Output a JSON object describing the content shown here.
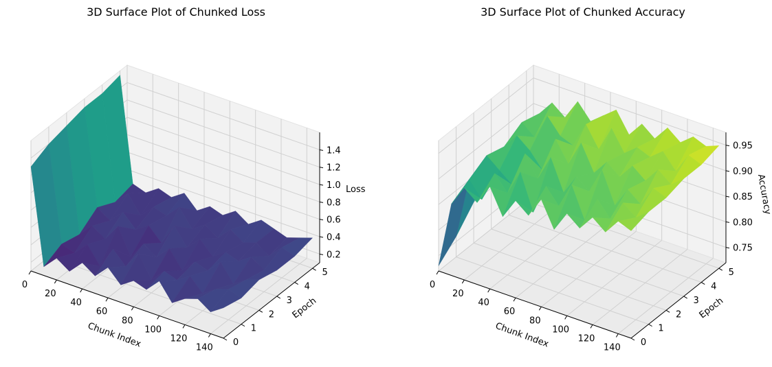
{
  "chart_data": [
    {
      "type": "surface3d",
      "title": "3D Surface Plot of Chunked Loss",
      "xlabel": "Chunk Index",
      "ylabel": "Epoch",
      "zlabel": "Loss",
      "xlim": [
        0,
        150
      ],
      "ylim": [
        0,
        5.4
      ],
      "zlim": [
        0.1,
        1.6
      ],
      "xticks": [
        "0",
        "20",
        "40",
        "60",
        "80",
        "100",
        "120",
        "140"
      ],
      "yticks": [
        "0",
        "1",
        "2",
        "3",
        "4",
        "5"
      ],
      "zticks": [
        "0.2",
        "0.4",
        "0.6",
        "0.8",
        "1.0",
        "1.2",
        "1.4"
      ],
      "colormap": "viridis",
      "epoch_rows": [
        0,
        1,
        2,
        3,
        4,
        5
      ],
      "chunk_points": [
        0,
        10,
        20,
        30,
        40,
        50,
        60,
        70,
        80,
        90,
        100,
        110,
        120,
        130,
        140,
        150
      ],
      "values": [
        [
          1.3,
          0.2,
          0.35,
          0.25,
          0.4,
          0.3,
          0.45,
          0.3,
          0.4,
          0.35,
          0.5,
          0.3,
          0.4,
          0.45,
          0.35,
          0.45
        ],
        [
          1.4,
          0.3,
          0.25,
          0.4,
          0.2,
          0.45,
          0.3,
          0.5,
          0.25,
          0.4,
          0.35,
          0.45,
          0.3,
          0.4,
          0.45,
          0.4
        ],
        [
          1.45,
          0.25,
          0.4,
          0.3,
          0.5,
          0.2,
          0.4,
          0.3,
          0.45,
          0.25,
          0.4,
          0.35,
          0.5,
          0.3,
          0.4,
          0.45
        ],
        [
          1.5,
          0.4,
          0.3,
          0.45,
          0.3,
          0.4,
          0.25,
          0.5,
          0.3,
          0.45,
          0.3,
          0.4,
          0.35,
          0.45,
          0.35,
          0.4
        ],
        [
          1.5,
          0.3,
          0.45,
          0.25,
          0.4,
          0.35,
          0.5,
          0.3,
          0.4,
          0.3,
          0.45,
          0.35,
          0.4,
          0.3,
          0.45,
          0.4
        ],
        [
          1.55,
          0.35,
          0.3,
          0.4,
          0.35,
          0.45,
          0.3,
          0.4,
          0.35,
          0.45,
          0.35,
          0.45,
          0.4,
          0.35,
          0.4,
          0.45
        ]
      ]
    },
    {
      "type": "surface3d",
      "title": "3D Surface Plot of Chunked Accuracy",
      "xlabel": "Chunk Index",
      "ylabel": "Epoch",
      "zlabel": "Accuracy",
      "xlim": [
        0,
        150
      ],
      "ylim": [
        0,
        5.4
      ],
      "zlim": [
        0.72,
        0.975
      ],
      "xticks": [
        "0",
        "20",
        "40",
        "60",
        "80",
        "100",
        "120",
        "140"
      ],
      "yticks": [
        "0",
        "1",
        "2",
        "3",
        "4",
        "5"
      ],
      "zticks": [
        "0.75",
        "0.80",
        "0.85",
        "0.90",
        "0.95"
      ],
      "colormap": "viridis",
      "epoch_rows": [
        0,
        1,
        2,
        3,
        4,
        5
      ],
      "chunk_points": [
        0,
        10,
        20,
        30,
        40,
        50,
        60,
        70,
        80,
        90,
        100,
        110,
        120,
        130,
        140,
        150
      ],
      "values": [
        [
          0.73,
          0.86,
          0.9,
          0.88,
          0.92,
          0.87,
          0.91,
          0.89,
          0.93,
          0.88,
          0.92,
          0.9,
          0.93,
          0.91,
          0.94,
          0.93
        ],
        [
          0.76,
          0.88,
          0.85,
          0.91,
          0.88,
          0.93,
          0.86,
          0.92,
          0.89,
          0.94,
          0.88,
          0.93,
          0.9,
          0.94,
          0.92,
          0.94
        ],
        [
          0.8,
          0.9,
          0.88,
          0.86,
          0.93,
          0.89,
          0.94,
          0.88,
          0.92,
          0.9,
          0.95,
          0.89,
          0.93,
          0.91,
          0.95,
          0.94
        ],
        [
          0.83,
          0.89,
          0.92,
          0.9,
          0.87,
          0.94,
          0.9,
          0.95,
          0.9,
          0.93,
          0.91,
          0.94,
          0.92,
          0.95,
          0.93,
          0.95
        ],
        [
          0.85,
          0.91,
          0.89,
          0.94,
          0.91,
          0.9,
          0.95,
          0.91,
          0.96,
          0.92,
          0.94,
          0.93,
          0.95,
          0.92,
          0.96,
          0.95
        ],
        [
          0.86,
          0.9,
          0.93,
          0.91,
          0.95,
          0.92,
          0.94,
          0.96,
          0.92,
          0.95,
          0.93,
          0.96,
          0.94,
          0.96,
          0.95,
          0.96
        ]
      ]
    }
  ]
}
